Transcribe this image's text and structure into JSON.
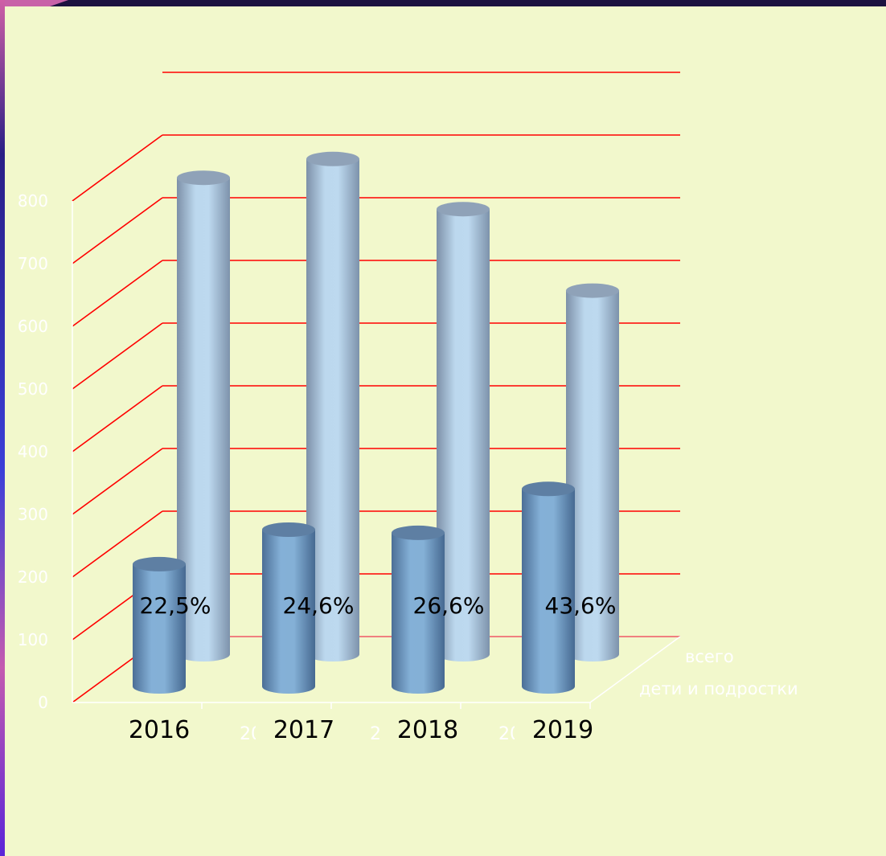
{
  "chart_data": {
    "type": "bar",
    "style": "3d-cylinder",
    "categories": [
      "2016",
      "2017",
      "2018",
      "2019"
    ],
    "series": [
      {
        "name": "всего",
        "values": [
          760,
          790,
          710,
          580
        ],
        "color": "#b9d6ec"
      },
      {
        "name": "дети и подростки",
        "values": [
          195,
          250,
          245,
          315
        ],
        "color": "#7aa8cf"
      }
    ],
    "data_labels": [
      "22,5%",
      "24,6%",
      "26,6%",
      "43,6%"
    ],
    "ylim": [
      0,
      800
    ],
    "yticks": [
      "0",
      "100",
      "200",
      "300",
      "400",
      "500",
      "600",
      "700",
      "800"
    ],
    "grid": true,
    "grid_color": "#ff0000",
    "legend": "right"
  },
  "colors": {
    "background": "#f2f8cc",
    "frame_left": "#5b2cd8",
    "frame_top": "#1d1240"
  }
}
